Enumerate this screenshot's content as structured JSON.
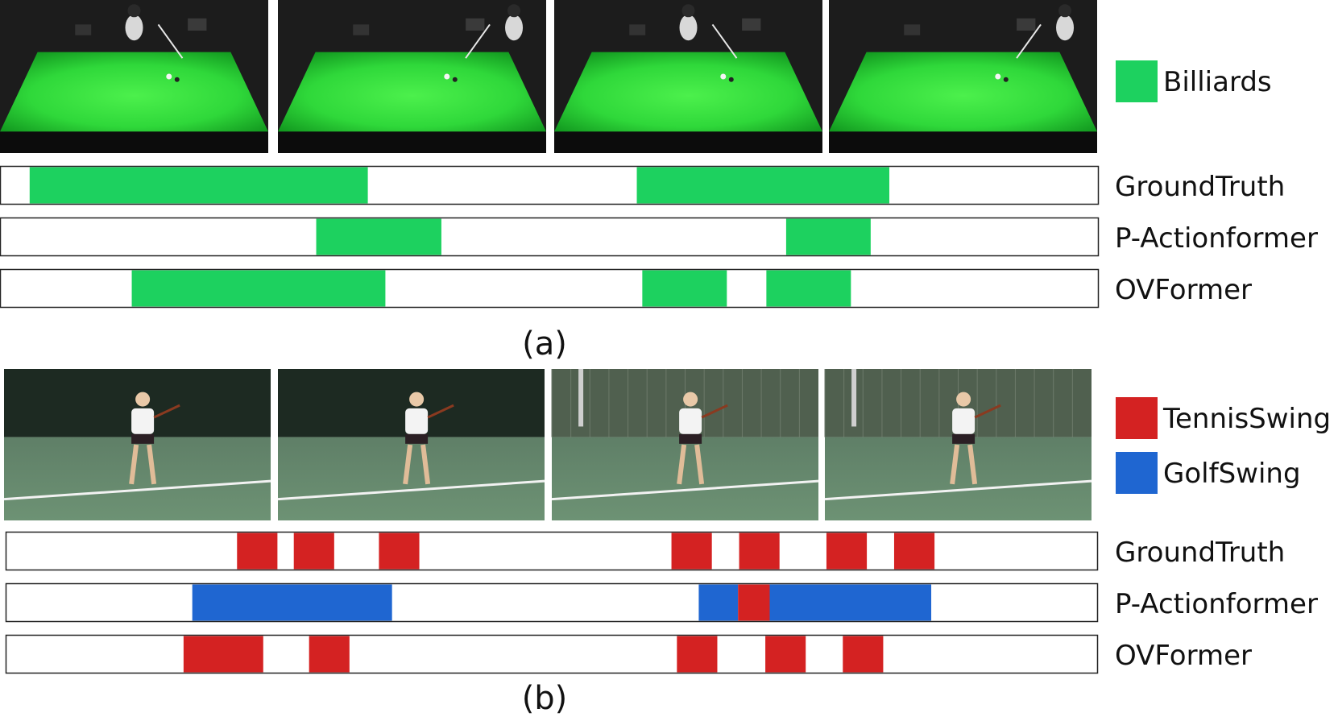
{
  "panels": [
    {
      "caption": "(a)",
      "legend": [
        {
          "label": "Billiards",
          "color": "#1dd15f"
        }
      ],
      "frames": [
        {
          "scene": "billiards",
          "players": "left"
        },
        {
          "scene": "billiards",
          "players": "right"
        },
        {
          "scene": "billiards",
          "players": "left"
        },
        {
          "scene": "billiards",
          "players": "right"
        }
      ],
      "rows": [
        {
          "label": "GroundTruth",
          "segments": [
            {
              "start": 0.027,
              "end": 0.335,
              "color": "#1dd15f"
            },
            {
              "start": 0.58,
              "end": 0.81,
              "color": "#1dd15f"
            }
          ]
        },
        {
          "label": "P-Actionformer",
          "segments": [
            {
              "start": 0.288,
              "end": 0.402,
              "color": "#1dd15f"
            },
            {
              "start": 0.716,
              "end": 0.793,
              "color": "#1dd15f"
            }
          ]
        },
        {
          "label": "OVFormer",
          "segments": [
            {
              "start": 0.12,
              "end": 0.351,
              "color": "#1dd15f"
            },
            {
              "start": 0.585,
              "end": 0.662,
              "color": "#1dd15f"
            },
            {
              "start": 0.698,
              "end": 0.775,
              "color": "#1dd15f"
            }
          ]
        }
      ]
    },
    {
      "caption": "(b)",
      "legend": [
        {
          "label": "TennisSwing",
          "color": "#d42222"
        },
        {
          "label": "GolfSwing",
          "color": "#1f66d1"
        }
      ],
      "frames": [
        {
          "scene": "tennis"
        },
        {
          "scene": "tennis"
        },
        {
          "scene": "tennis-fence"
        },
        {
          "scene": "tennis-fence"
        }
      ],
      "rows": [
        {
          "label": "GroundTruth",
          "segments": [
            {
              "start": 0.212,
              "end": 0.249,
              "color": "#d42222"
            },
            {
              "start": 0.264,
              "end": 0.301,
              "color": "#d42222"
            },
            {
              "start": 0.342,
              "end": 0.379,
              "color": "#d42222"
            },
            {
              "start": 0.61,
              "end": 0.647,
              "color": "#d42222"
            },
            {
              "start": 0.672,
              "end": 0.709,
              "color": "#d42222"
            },
            {
              "start": 0.752,
              "end": 0.789,
              "color": "#d42222"
            },
            {
              "start": 0.814,
              "end": 0.851,
              "color": "#d42222"
            }
          ]
        },
        {
          "label": "P-Actionformer",
          "segments": [
            {
              "start": 0.171,
              "end": 0.354,
              "color": "#1f66d1"
            },
            {
              "start": 0.635,
              "end": 0.671,
              "color": "#1f66d1"
            },
            {
              "start": 0.671,
              "end": 0.7,
              "color": "#d42222"
            },
            {
              "start": 0.7,
              "end": 0.848,
              "color": "#1f66d1"
            }
          ]
        },
        {
          "label": "OVFormer",
          "segments": [
            {
              "start": 0.163,
              "end": 0.236,
              "color": "#d42222"
            },
            {
              "start": 0.278,
              "end": 0.315,
              "color": "#d42222"
            },
            {
              "start": 0.615,
              "end": 0.652,
              "color": "#d42222"
            },
            {
              "start": 0.696,
              "end": 0.733,
              "color": "#d42222"
            },
            {
              "start": 0.767,
              "end": 0.804,
              "color": "#d42222"
            }
          ]
        }
      ]
    }
  ]
}
